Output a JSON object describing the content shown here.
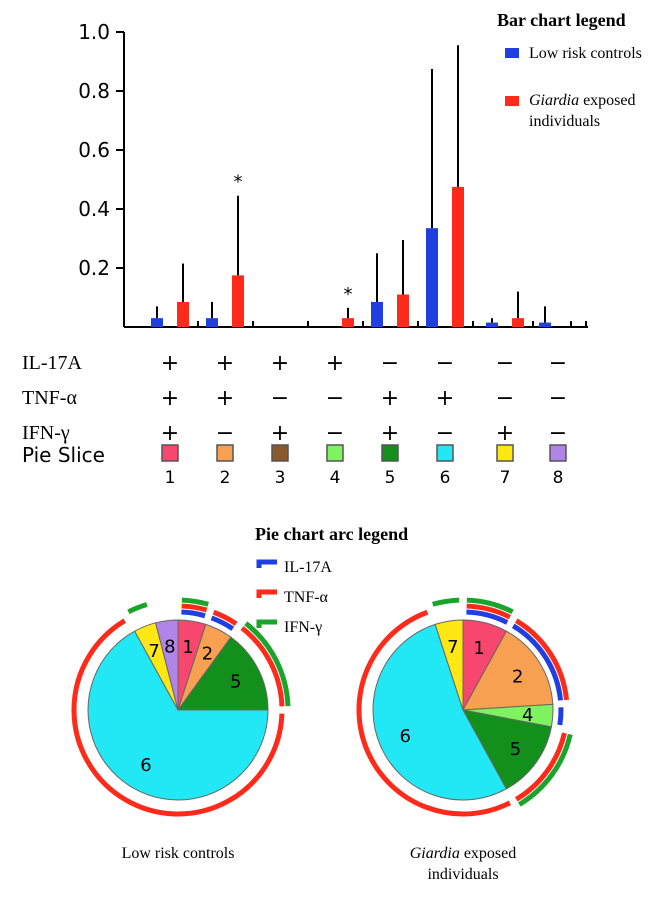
{
  "colors": {
    "low_risk": "#1f3fe0",
    "giardia": "#ff2a1a",
    "error_bar": "#000000",
    "arc_il17a": "#1f3fe0",
    "arc_tnfa": "#ff2a1a",
    "arc_ifng": "#1aa52a",
    "slices": [
      "#f7476e",
      "#f8a052",
      "#8b5a2b",
      "#7ef25f",
      "#138f1c",
      "#22e8f5",
      "#ffe713",
      "#b185e8"
    ]
  },
  "chart_data": [
    {
      "type": "bar",
      "legend_title": "Bar chart legend",
      "legend_placement": "top-right",
      "ylim": [
        0,
        1.0
      ],
      "yticks": [
        "1.0",
        "0.8",
        "0.6",
        "0.4",
        "0.2"
      ],
      "categories": [
        "1",
        "2",
        "3",
        "4",
        "5",
        "6",
        "7",
        "8"
      ],
      "series": [
        {
          "name": "Low risk controls",
          "values": [
            0.03,
            0.03,
            0,
            0,
            0.085,
            0.335,
            0.015,
            0.015
          ],
          "errors": [
            0.07,
            0.085,
            0,
            0,
            0.25,
            0.875,
            0.03,
            0.07
          ]
        },
        {
          "name": "Giardia exposed individuals",
          "values": [
            0.085,
            0.175,
            0,
            0.03,
            0.11,
            0.475,
            0.03,
            0
          ],
          "errors": [
            0.215,
            0.445,
            0,
            0.065,
            0.295,
            0.955,
            0.12,
            0.02
          ]
        }
      ],
      "significance": [
        "",
        "*",
        "",
        "*",
        "",
        "",
        "",
        ""
      ],
      "marker_rows": [
        {
          "label": "IL-17A",
          "marks": [
            "+",
            "+",
            "+",
            "+",
            "−",
            "−",
            "−",
            "−"
          ]
        },
        {
          "label": "TNF-α",
          "marks": [
            "+",
            "+",
            "−",
            "−",
            "+",
            "+",
            "−",
            "−"
          ]
        },
        {
          "label": "IFN-γ",
          "marks": [
            "+",
            "−",
            "+",
            "−",
            "+",
            "−",
            "+",
            "−"
          ]
        }
      ],
      "pie_slice_label": "Pie Slice"
    },
    {
      "type": "pie",
      "legend_title": "Pie chart arc legend",
      "arc_legend": [
        "IL-17A",
        "TNF-α",
        "IFN-γ"
      ],
      "charts": [
        {
          "caption": [
            "Low risk controls"
          ],
          "slices": [
            {
              "label": "1",
              "value": 5
            },
            {
              "label": "2",
              "value": 5
            },
            {
              "label": "5",
              "value": 15
            },
            {
              "label": "6",
              "value": 67
            },
            {
              "label": "7",
              "value": 4
            },
            {
              "label": "8",
              "value": 4
            }
          ]
        },
        {
          "caption": [
            "Giardia exposed",
            "individuals"
          ],
          "slices": [
            {
              "label": "1",
              "value": 8
            },
            {
              "label": "2",
              "value": 16
            },
            {
              "label": "4",
              "value": 4
            },
            {
              "label": "5",
              "value": 14
            },
            {
              "label": "6",
              "value": 53
            },
            {
              "label": "7",
              "value": 5
            }
          ]
        }
      ]
    }
  ]
}
